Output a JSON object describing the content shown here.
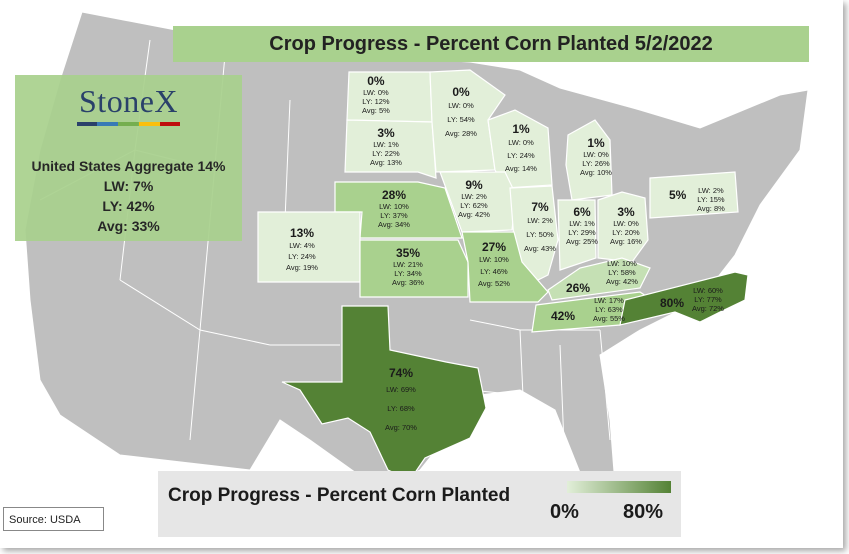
{
  "title": "Crop Progress - Percent Corn Planted 5/2/2022",
  "logo": "StoneX",
  "aggregate": {
    "title": "United States Aggregate 14%",
    "lw": "LW: 7%",
    "ly": "LY: 42%",
    "avg": "Avg: 33%"
  },
  "legend": {
    "title": "Crop Progress - Percent Corn Planted",
    "min": "0%",
    "max": "80%",
    "low_color": "#e2efd9",
    "high_color": "#548235"
  },
  "source": "Source: USDA",
  "colors": {
    "map_gray": "#bfbfbf",
    "state_border": "#ffffff",
    "banner_green": "#a9d18e",
    "logo_navy": "#1f3864"
  },
  "states": [
    {
      "state": "North Dakota",
      "pct": "0%",
      "lw": "LW: 0%",
      "ly": "LY: 12%",
      "avg": "Avg: 5%",
      "value": 0
    },
    {
      "state": "Minnesota",
      "pct": "0%",
      "lw": "LW: 0%",
      "ly": "LY: 54%",
      "avg": "Avg: 28%",
      "value": 0
    },
    {
      "state": "South Dakota",
      "pct": "3%",
      "lw": "LW: 1%",
      "ly": "LY: 22%",
      "avg": "Avg: 13%",
      "value": 3
    },
    {
      "state": "Wisconsin",
      "pct": "1%",
      "lw": "LW: 0%",
      "ly": "LY: 24%",
      "avg": "Avg: 14%",
      "value": 1
    },
    {
      "state": "Michigan",
      "pct": "1%",
      "lw": "LW: 0%",
      "ly": "LY: 26%",
      "avg": "Avg: 10%",
      "value": 1
    },
    {
      "state": "Nebraska",
      "pct": "28%",
      "lw": "LW: 10%",
      "ly": "LY: 37%",
      "avg": "Avg: 34%",
      "value": 28
    },
    {
      "state": "Iowa",
      "pct": "9%",
      "lw": "LW: 2%",
      "ly": "LY: 62%",
      "avg": "Avg: 42%",
      "value": 9
    },
    {
      "state": "Illinois",
      "pct": "7%",
      "lw": "LW: 2%",
      "ly": "LY: 50%",
      "avg": "Avg: 43%",
      "value": 7
    },
    {
      "state": "Indiana",
      "pct": "6%",
      "lw": "LW: 1%",
      "ly": "LY: 29%",
      "avg": "Avg: 25%",
      "value": 6
    },
    {
      "state": "Ohio",
      "pct": "3%",
      "lw": "LW: 0%",
      "ly": "LY: 20%",
      "avg": "Avg: 16%",
      "value": 3
    },
    {
      "state": "Pennsylvania",
      "pct": "5%",
      "lw": "LW: 2%",
      "ly": "LY: 15%",
      "avg": "Avg: 8%",
      "value": 5
    },
    {
      "state": "Colorado",
      "pct": "13%",
      "lw": "LW: 4%",
      "ly": "LY: 24%",
      "avg": "Avg: 19%",
      "value": 13
    },
    {
      "state": "Kansas",
      "pct": "35%",
      "lw": "LW: 21%",
      "ly": "LY: 34%",
      "avg": "Avg: 36%",
      "value": 35
    },
    {
      "state": "Missouri",
      "pct": "27%",
      "lw": "LW: 10%",
      "ly": "LY: 46%",
      "avg": "Avg: 52%",
      "value": 27
    },
    {
      "state": "Kentucky",
      "pct": "26%",
      "lw": "LW: 10%",
      "ly": "LY: 58%",
      "avg": "Avg: 42%",
      "value": 26
    },
    {
      "state": "Tennessee",
      "pct": "42%",
      "lw": "LW: 17%",
      "ly": "LY: 63%",
      "avg": "Avg: 55%",
      "value": 42
    },
    {
      "state": "North Carolina",
      "pct": "80%",
      "lw": "LW: 60%",
      "ly": "LY: 77%",
      "avg": "Avg: 72%",
      "value": 80
    },
    {
      "state": "Texas",
      "pct": "74%",
      "lw": "LW: 69%",
      "ly": "LY: 68%",
      "avg": "Avg: 70%",
      "value": 74
    }
  ]
}
